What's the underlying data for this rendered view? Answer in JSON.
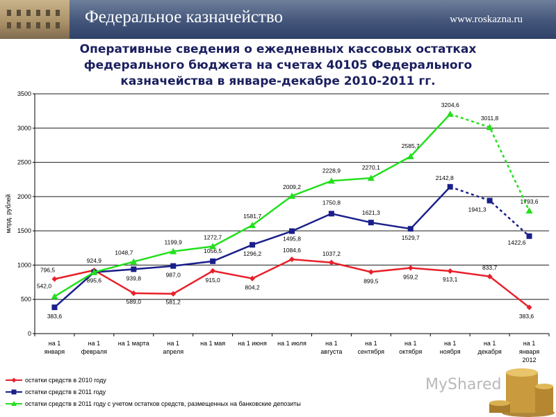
{
  "header": {
    "brand": "Федеральное казначейство",
    "site": "www.roskazna.ru"
  },
  "title_lines": [
    "Оперативные сведения о ежедневных кассовых остатках",
    "федерального бюджета на счетах 40105 Федерального",
    "казначейства в январе-декабре 2010-2011 гг."
  ],
  "watermark": "MyShared",
  "colors": {
    "series_2010": "#e8202a",
    "series_2011": "#1a1f8a",
    "series_2011_dep": "#22e01c",
    "header_bg": "#43557a"
  },
  "chart_data": {
    "type": "line",
    "ylabel": "млрд. рублей",
    "ylim": [
      0,
      3500
    ],
    "yticks": [
      0,
      500,
      1000,
      1500,
      2000,
      2500,
      3000,
      3500
    ],
    "grid": true,
    "legend_position": "bottom-left",
    "categories": [
      [
        "на 1",
        "января"
      ],
      [
        "на 1",
        "февраля"
      ],
      [
        "на 1 марта"
      ],
      [
        "на 1",
        "апреля"
      ],
      [
        "на 1 мая"
      ],
      [
        "на 1 июня"
      ],
      [
        "на 1 июля"
      ],
      [
        "на 1",
        "августа"
      ],
      [
        "на 1",
        "сентября"
      ],
      [
        "на 1",
        "октября"
      ],
      [
        "на 1",
        "ноября"
      ],
      [
        "на 1",
        "декабря"
      ],
      [
        "на 1",
        "января",
        "2012"
      ]
    ],
    "series": [
      {
        "name": "остатки средств в 2010 году",
        "key": "series_2010",
        "marker": "diamond",
        "values": [
          796.5,
          924.9,
          589.0,
          581.2,
          915.0,
          804.2,
          1084.6,
          1037.2,
          899.5,
          959.2,
          913.1,
          833.7,
          383.6
        ],
        "labels": [
          "796,5",
          "924,9",
          "589,0",
          "581,2",
          "915,0",
          "804,2",
          "1084,6",
          "1037,2",
          "899,5",
          "959,2",
          "913,1",
          "833,7",
          "383,6"
        ],
        "dashed_from": 13
      },
      {
        "name": "остатки средств в 2011 году",
        "key": "series_2011",
        "marker": "square",
        "values": [
          383.6,
          895.6,
          939.8,
          987.0,
          1056.5,
          1296.2,
          1495.8,
          1750.8,
          1621.3,
          1529.7,
          2142.8,
          1941.3,
          1422.6
        ],
        "labels": [
          "383,6",
          "895,6",
          "939,8",
          "987,0",
          "1056,5",
          "1296,2",
          "1495,8",
          "1750,8",
          "1621,3",
          "1529,7",
          "2142,8",
          "1941,3",
          "1422,6"
        ],
        "dashed_from": 10
      },
      {
        "name": "остатки средств в 2011 году с учетом остатков средств, размещенных на банковские депозиты",
        "key": "series_2011_dep",
        "marker": "triangle",
        "values": [
          542.0,
          895.6,
          1048.7,
          1199.9,
          1272.7,
          1581.7,
          2009.2,
          2228.9,
          2270.1,
          2585.7,
          3204.6,
          3011.8,
          1793.6
        ],
        "labels": [
          "542,0",
          "",
          "1048,7",
          "1199,9",
          "1272,7",
          "1581,7",
          "2009,2",
          "2228,9",
          "2270,1",
          "2585,7",
          "3204,6",
          "3011,8",
          "1793,6"
        ],
        "dashed_from": 10
      }
    ]
  }
}
